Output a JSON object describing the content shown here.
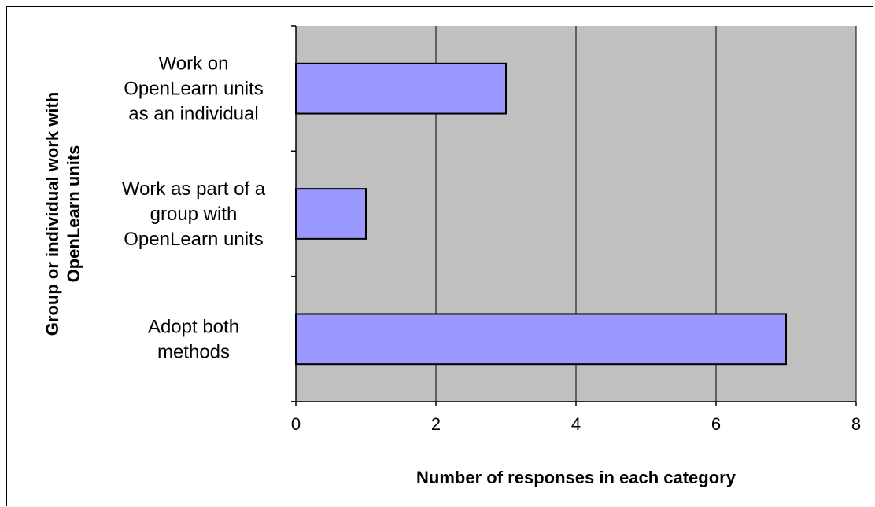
{
  "chart_data": {
    "type": "bar",
    "orientation": "horizontal",
    "categories": [
      [
        "Work on",
        "OpenLearn units",
        "as an individual"
      ],
      [
        "Work as part of a",
        "group with",
        "OpenLearn units"
      ],
      [
        "Adopt both",
        "methods"
      ]
    ],
    "values": [
      3,
      1,
      7
    ],
    "xlabel": "Number of responses in each category",
    "ylabel": [
      "Group or individual work with",
      "OpenLearn units"
    ],
    "xlim": [
      0,
      8
    ],
    "xticks": [
      "0",
      "2",
      "4",
      "6",
      "8"
    ],
    "grid": "vertical major gridlines",
    "legend": "none",
    "colors": {
      "bar_fill": "#9999ff",
      "bar_stroke": "#000000",
      "plot_background": "#c0c0c0",
      "gridline": "#000000"
    }
  }
}
